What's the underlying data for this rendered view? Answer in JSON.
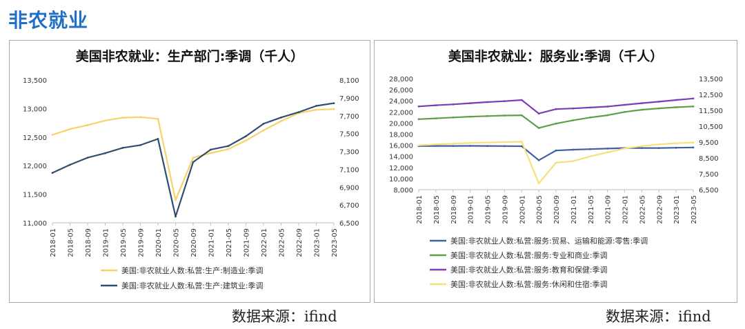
{
  "page": {
    "title": "非农就业"
  },
  "sources": {
    "left": "数据来源：ifind",
    "right": "数据来源：ifind"
  },
  "chart_data": [
    {
      "type": "line",
      "title": "美国非农就业：生产部门:季调（千人）",
      "x": [
        "2018-01",
        "2018-05",
        "2018-09",
        "2019-01",
        "2019-05",
        "2019-09",
        "2020-01",
        "2020-05",
        "2020-09",
        "2021-01",
        "2021-05",
        "2021-09",
        "2022-01",
        "2022-05",
        "2022-09",
        "2023-01",
        "2023-05"
      ],
      "x_ticks": [
        "2018-01",
        "2018-05",
        "2018-09",
        "2019-01",
        "2019-05",
        "2019-09",
        "2020-01",
        "2020-05",
        "2020-09",
        "2021-01",
        "2021-05",
        "2021-09",
        "2022-01",
        "2022-05",
        "2022-09",
        "2023-01",
        "2023-05"
      ],
      "ylim_left": [
        11000,
        13500
      ],
      "yticks_left": [
        "11,000",
        "11,500",
        "12,000",
        "12,500",
        "13,000",
        "13,500"
      ],
      "ylim_right": [
        6500,
        8100
      ],
      "yticks_right": [
        "6,500",
        "6,700",
        "6,900",
        "7,100",
        "7,300",
        "7,500",
        "7,700",
        "7,900",
        "8,100"
      ],
      "series": [
        {
          "name": "美国:非农就业人数:私营:生产:制造业:季调",
          "axis": "left",
          "color": "#f5d36b",
          "values": [
            12540,
            12640,
            12710,
            12790,
            12840,
            12850,
            12820,
            11400,
            12140,
            12220,
            12290,
            12440,
            12620,
            12780,
            12920,
            12980,
            12990
          ]
        },
        {
          "name": "美国:非农就业人数:私营:生产:建筑业:季调",
          "axis": "right",
          "color": "#2f4d6e",
          "values": [
            7060,
            7150,
            7230,
            7280,
            7340,
            7370,
            7440,
            6570,
            7180,
            7320,
            7360,
            7470,
            7610,
            7680,
            7740,
            7810,
            7840
          ]
        }
      ],
      "grid": false,
      "legend": "bottom"
    },
    {
      "type": "line",
      "title": "美国非农就业：服务业:季调（千人）",
      "x": [
        "2018-01",
        "2018-05",
        "2018-09",
        "2019-01",
        "2019-05",
        "2019-09",
        "2020-01",
        "2020-05",
        "2020-09",
        "2021-01",
        "2021-05",
        "2021-09",
        "2022-01",
        "2022-05",
        "2022-09",
        "2023-01",
        "2023-05"
      ],
      "x_ticks": [
        "2018-01",
        "2018-05",
        "2018-09",
        "2019-01",
        "2019-05",
        "2019-09",
        "2020-01",
        "2020-05",
        "2020-09",
        "2021-01",
        "2021-05",
        "2021-09",
        "2022-01",
        "2022-05",
        "2022-09",
        "2023-01",
        "2023-05"
      ],
      "ylim_left": [
        8000,
        28000
      ],
      "yticks_left": [
        "8,000",
        "10,000",
        "12,000",
        "14,000",
        "16,000",
        "18,000",
        "20,000",
        "22,000",
        "24,000",
        "26,000",
        "28,000"
      ],
      "ylim_right": [
        6500,
        13500
      ],
      "yticks_right": [
        "6,500",
        "7,500",
        "8,500",
        "9,500",
        "10,500",
        "11,500",
        "12,500",
        "13,500"
      ],
      "series": [
        {
          "name": "美国:非农就业人数:私营:服务:贸易、运输和能源:零售:季调",
          "axis": "left",
          "color": "#3c5fa8",
          "values": [
            15850,
            15870,
            15880,
            15890,
            15870,
            15850,
            15820,
            13300,
            15050,
            15200,
            15300,
            15400,
            15500,
            15500,
            15500,
            15550,
            15600
          ]
        },
        {
          "name": "美国:非农就业人数:私营:服务:专业和商业:季调",
          "axis": "left",
          "color": "#5f9e45",
          "values": [
            20700,
            20850,
            21000,
            21150,
            21250,
            21350,
            21400,
            19100,
            19900,
            20500,
            21000,
            21400,
            22000,
            22400,
            22650,
            22850,
            23000
          ]
        },
        {
          "name": "美国:非农就业人数:私营:服务:教育和保健:季调",
          "axis": "right",
          "color": "#7a3db6",
          "values": [
            11750,
            11820,
            11880,
            11950,
            12020,
            12080,
            12150,
            11300,
            11580,
            11620,
            11680,
            11740,
            11850,
            11950,
            12050,
            12150,
            12250
          ]
        },
        {
          "name": "美国:非农就业人数:私营:服务:休闲和住宿:季调",
          "axis": "right",
          "color": "#f7e07c",
          "values": [
            9300,
            9350,
            9400,
            9450,
            9470,
            9500,
            9520,
            6900,
            8200,
            8300,
            8600,
            8850,
            9100,
            9250,
            9350,
            9430,
            9470
          ]
        }
      ],
      "grid": false,
      "legend": "bottom"
    }
  ]
}
